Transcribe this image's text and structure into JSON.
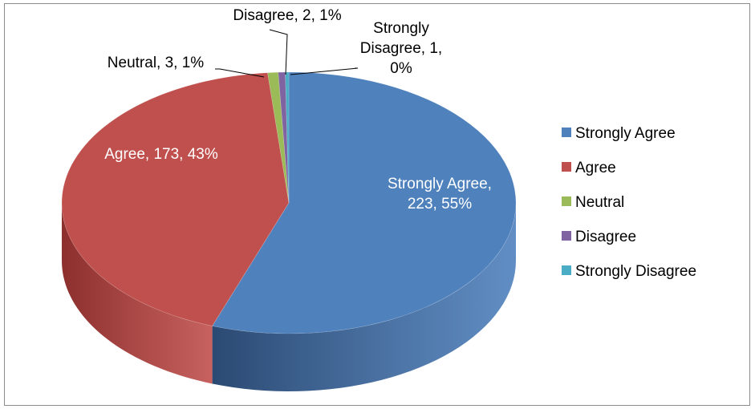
{
  "chart_data": {
    "type": "pie",
    "style": "3d",
    "categories": [
      "Strongly Agree",
      "Agree",
      "Neutral",
      "Disagree",
      "Strongly Disagree"
    ],
    "values": [
      223,
      173,
      3,
      2,
      1
    ],
    "percent_labels": [
      "55%",
      "43%",
      "1%",
      "1%",
      "0%"
    ],
    "data_labels": [
      [
        "Strongly Agree,",
        "223, 55%"
      ],
      [
        "Agree, 173, 43%"
      ],
      [
        "Neutral, 3, 1%"
      ],
      [
        "Disagree, 2, 1%"
      ],
      [
        "Strongly",
        "Disagree, 1,",
        "0%"
      ]
    ],
    "colors": [
      "#4f81bd",
      "#c0504d",
      "#9bbb59",
      "#8064a2",
      "#4bacc6"
    ],
    "side_colors": [
      "#2b4a73",
      "#8c2f2d",
      "#6b8a35",
      "#58437a",
      "#2e8aa3"
    ],
    "label_colors": [
      "#ffffff",
      "#ffffff",
      "#000000",
      "#000000",
      "#000000"
    ],
    "legend_position": "right",
    "title": ""
  }
}
